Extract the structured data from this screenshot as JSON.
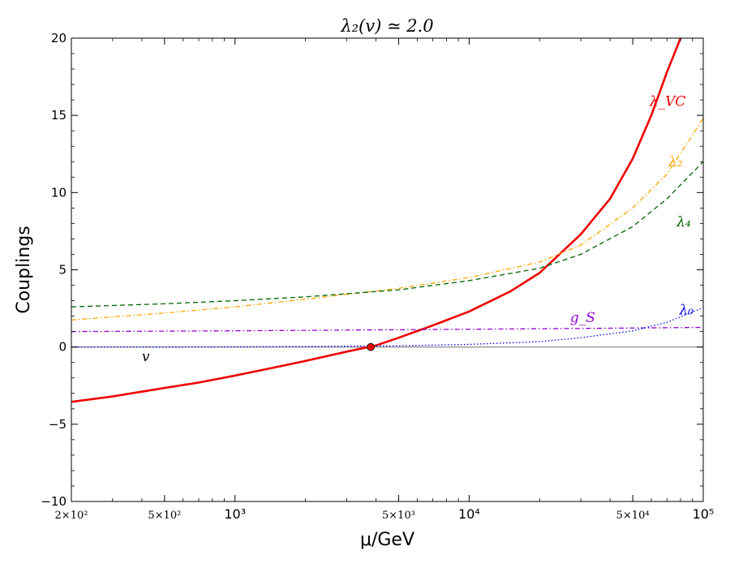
{
  "chart_data": {
    "type": "line",
    "title": "λ₂(v) ≃ 2.0",
    "xlabel": "μ/GeV",
    "ylabel": "Couplings",
    "xscale": "log",
    "xlim": [
      200,
      100000
    ],
    "ylim": [
      -10,
      20
    ],
    "grid": false,
    "y_ticks": [
      -10,
      -5,
      0,
      5,
      10,
      15,
      20
    ],
    "y_tick_labels": [
      "−10",
      "−5",
      "0",
      "5",
      "10",
      "15",
      "20"
    ],
    "x_ticks": [
      {
        "value": 200,
        "label": "2×10²"
      },
      {
        "value": 500,
        "label": "5×10²"
      },
      {
        "value": 1000,
        "label": "10³"
      },
      {
        "value": 5000,
        "label": "5×10³"
      },
      {
        "value": 10000,
        "label": "10⁴"
      },
      {
        "value": 50000,
        "label": "5×10⁴"
      },
      {
        "value": 100000,
        "label": "10⁵"
      }
    ],
    "series": [
      {
        "name": "λ_VC",
        "color": "#ee0000",
        "style": "solid",
        "x": [
          200,
          300,
          500,
          700,
          1000,
          1500,
          2000,
          3000,
          4000,
          5000,
          7000,
          10000,
          15000,
          20000,
          30000,
          40000,
          50000,
          60000,
          70000,
          80000
        ],
        "y": [
          -3.55,
          -3.2,
          -2.65,
          -2.3,
          -1.85,
          -1.3,
          -0.9,
          -0.3,
          0.1,
          0.6,
          1.4,
          2.3,
          3.6,
          4.8,
          7.3,
          9.6,
          12.2,
          15.0,
          17.8,
          20.0
        ]
      },
      {
        "name": "λ₂",
        "color": "#ffa500",
        "style": "dashdot",
        "x": [
          200,
          500,
          1000,
          2000,
          5000,
          10000,
          20000,
          30000,
          50000,
          70000,
          100000
        ],
        "y": [
          1.75,
          2.2,
          2.6,
          3.1,
          3.8,
          4.5,
          5.5,
          6.6,
          9.0,
          11.2,
          14.8
        ]
      },
      {
        "name": "λ₄",
        "color": "#006400",
        "style": "dashed",
        "x": [
          200,
          500,
          1000,
          2000,
          5000,
          10000,
          20000,
          30000,
          50000,
          70000,
          100000
        ],
        "y": [
          2.6,
          2.8,
          3.0,
          3.25,
          3.7,
          4.3,
          5.1,
          6.0,
          7.8,
          9.6,
          12.0
        ]
      },
      {
        "name": "g_S",
        "color": "#9400d3",
        "style": "dashdot",
        "x": [
          200,
          1000,
          5000,
          10000,
          50000,
          100000
        ],
        "y": [
          1.0,
          1.05,
          1.12,
          1.15,
          1.23,
          1.27
        ]
      },
      {
        "name": "λ₀",
        "color": "#0000ee",
        "style": "dotted",
        "x": [
          200,
          1000,
          2000,
          5000,
          10000,
          20000,
          30000,
          50000,
          70000,
          100000
        ],
        "y": [
          0.0,
          0.01,
          0.03,
          0.08,
          0.17,
          0.35,
          0.6,
          1.05,
          1.6,
          2.55
        ]
      }
    ],
    "annotations": [
      {
        "text": "λ_VC",
        "x": 59000,
        "y": 15.6,
        "color": "#ee0000"
      },
      {
        "text": "λ₂",
        "x": 71000,
        "y": 11.7,
        "color": "#ffa500"
      },
      {
        "text": "λ₄",
        "x": 77000,
        "y": 7.8,
        "color": "#006400"
      },
      {
        "text": "g_S",
        "x": 27000,
        "y": 1.6,
        "color": "#9400d3"
      },
      {
        "text": "λ₀",
        "x": 79000,
        "y": 2.1,
        "color": "#0000ee"
      },
      {
        "text": "v",
        "x": 400,
        "y": -0.9,
        "color": "#000000"
      }
    ],
    "hline": {
      "y": 0,
      "color": "#808080"
    },
    "marker": {
      "x": 3800,
      "y": 0,
      "color": "#ee0000"
    }
  }
}
